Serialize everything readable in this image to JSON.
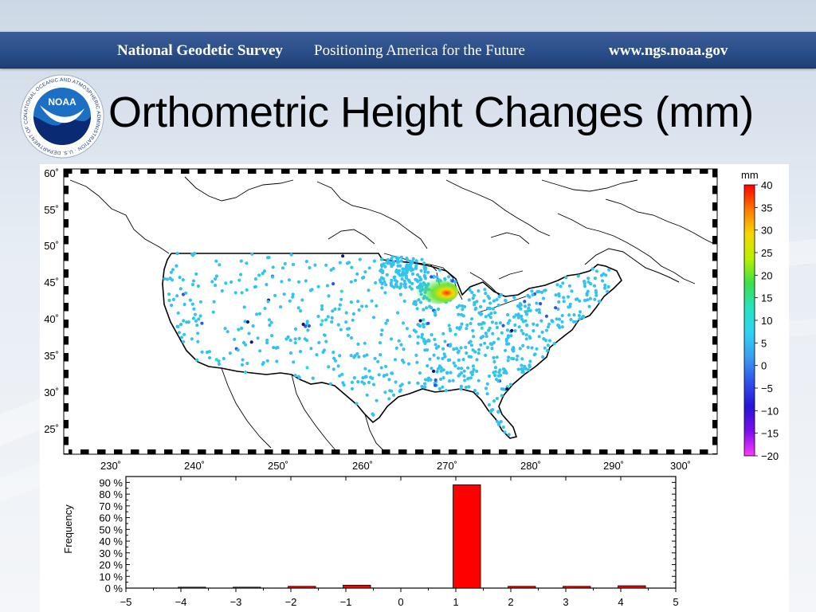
{
  "banner": {
    "organization": "National Geodetic Survey",
    "tagline": "Positioning America for the Future",
    "url": "www.ngs.noaa.gov"
  },
  "logo": {
    "text": "NOAA",
    "ring_text": "NATIONAL OCEANIC AND ATMOSPHERIC ADMINISTRATION · U.S. DEPARTMENT OF COMMERCE"
  },
  "title": "Orthometric Height Changes (mm)",
  "map": {
    "lat_ticks": [
      "60˚",
      "55˚",
      "50˚",
      "45˚",
      "40˚",
      "35˚",
      "30˚",
      "25˚"
    ],
    "lon_ticks": [
      "230˚",
      "240˚",
      "250˚",
      "260˚",
      "270˚",
      "280˚",
      "290˚",
      "300˚"
    ]
  },
  "colorbar": {
    "unit": "mm",
    "labels": [
      "40",
      "35",
      "30",
      "25",
      "20",
      "15",
      "10",
      "5",
      "0",
      "−5",
      "−10",
      "−15",
      "−20"
    ],
    "colors": [
      "#ff0000",
      "#ff7a00",
      "#f5d800",
      "#b8f000",
      "#3ce04a",
      "#27e3c0",
      "#2fd3f3",
      "#3b9df0",
      "#2f52ea",
      "#2614d6",
      "#7a0fe8",
      "#ff38ff"
    ]
  },
  "chart_data": {
    "type": "bar",
    "ylabel": "Frequency",
    "xlim": [
      -5,
      5
    ],
    "ylim": [
      0,
      95
    ],
    "xticks": [
      "−5",
      "−4",
      "−3",
      "−2",
      "−1",
      "0",
      "1",
      "2",
      "3",
      "4",
      "5"
    ],
    "yticks": [
      "0 %",
      "10 %",
      "20 %",
      "30 %",
      "40 %",
      "50 %",
      "60 %",
      "70 %",
      "80 %",
      "90 %"
    ],
    "bin_width": 0.5,
    "bin_centers": [
      -3.8,
      -2.8,
      -1.8,
      -0.8,
      1.2,
      2.2,
      3.2,
      4.2
    ],
    "values": [
      0.8,
      0.8,
      1.5,
      2.5,
      88,
      1.5,
      1.5,
      2.0
    ],
    "bar_color": "#ff0000"
  }
}
